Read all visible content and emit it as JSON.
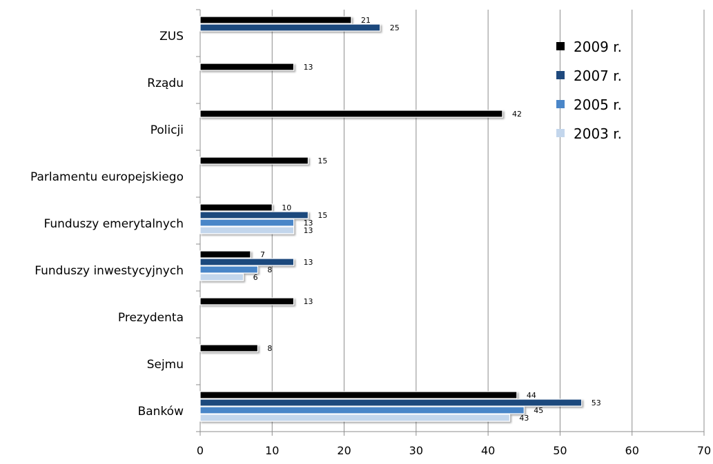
{
  "chart_data": {
    "type": "bar",
    "orientation": "horizontal",
    "categories": [
      "ZUS",
      "Rządu",
      "Policji",
      "Parlamentu europejskiego",
      "Funduszy emerytalnych",
      "Funduszy inwestycyjnych",
      "Prezydenta",
      "Sejmu",
      "Banków"
    ],
    "series": [
      {
        "name": "2009 r.",
        "color": "#000000",
        "values": [
          21,
          13,
          42,
          15,
          10,
          7,
          13,
          8,
          44
        ]
      },
      {
        "name": "2007 r.",
        "color": "#1f497d",
        "values": [
          25,
          null,
          null,
          null,
          15,
          13,
          null,
          null,
          53
        ]
      },
      {
        "name": "2005 r.",
        "color": "#4a86c8",
        "values": [
          null,
          null,
          null,
          null,
          13,
          8,
          null,
          null,
          45
        ]
      },
      {
        "name": "2003 r.",
        "color": "#c3d6ec",
        "values": [
          null,
          null,
          null,
          null,
          13,
          6,
          null,
          null,
          43
        ]
      }
    ],
    "xlim": [
      0,
      70
    ],
    "xticks": [
      0,
      10,
      20,
      30,
      40,
      50,
      60,
      70
    ],
    "grid": true,
    "legend_position": "top-right",
    "data_labels": true
  }
}
